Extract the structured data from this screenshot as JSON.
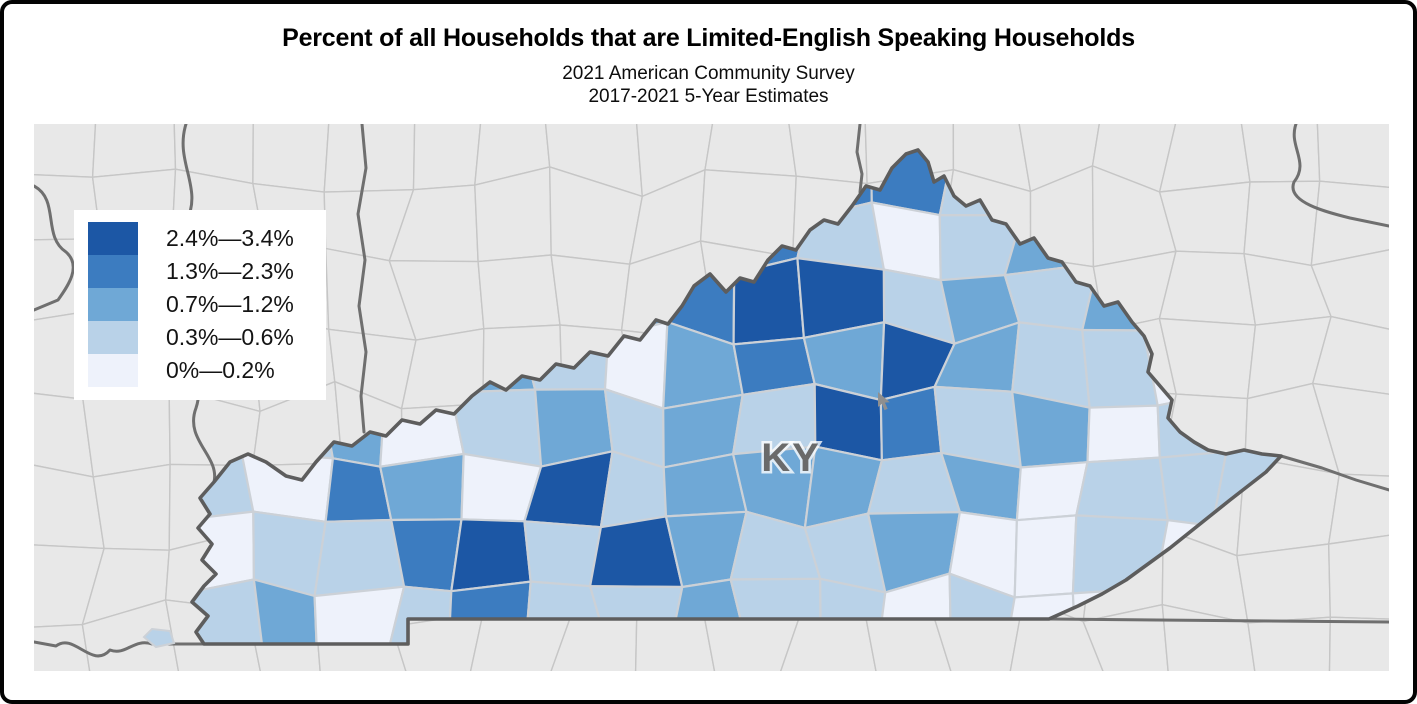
{
  "header": {
    "title": "Percent of all Households that are Limited-English Speaking Households",
    "subtitle_line1": "2021 American Community Survey",
    "subtitle_line2": "2017-2021 5-Year Estimates"
  },
  "map": {
    "state_label": "KY",
    "colors": {
      "surrounding_land": "#e8e8e8",
      "surrounding_county_line": "#c6c6c6",
      "state_border": "#6f6f6f",
      "ky_county_line": "#ccd1d7",
      "ky_state_border": "#5d5d5d",
      "state_label_color": "#6a6a6a"
    }
  },
  "legend": {
    "position": "upper-left",
    "entries": [
      {
        "class": 5,
        "label": "2.4%—3.4%",
        "color": "#1c57a5"
      },
      {
        "class": 4,
        "label": "1.3%—2.3%",
        "color": "#3c7cc0"
      },
      {
        "class": 3,
        "label": "0.7%—1.2%",
        "color": "#6fa8d6"
      },
      {
        "class": 2,
        "label": "0.3%—0.6%",
        "color": "#b9d2e8"
      },
      {
        "class": 1,
        "label": "0%—0.2%",
        "color": "#eef2fb"
      }
    ]
  },
  "chart_data": {
    "type": "choropleth",
    "region": "Kentucky counties (surrounding states shown in gray)",
    "measure": "Percent of all Households that are Limited-English Speaking Households",
    "value_range": [
      "0%",
      "3.4%"
    ],
    "classes": [
      {
        "class": 1,
        "range": "0%—0.2%",
        "color": "#eef2fb"
      },
      {
        "class": 2,
        "range": "0.3%—0.6%",
        "color": "#b9d2e8"
      },
      {
        "class": 3,
        "range": "0.7%—1.2%",
        "color": "#6fa8d6"
      },
      {
        "class": 4,
        "range": "1.3%—2.3%",
        "color": "#3c7cc0"
      },
      {
        "class": 5,
        "range": "2.4%—3.4%",
        "color": "#1c57a5"
      }
    ],
    "cell_classes": [
      [
        1,
        1,
        1,
        1,
        1,
        1,
        1,
        1,
        3,
        4,
        4,
        2,
        1,
        1,
        1,
        1
      ],
      [
        1,
        1,
        1,
        1,
        1,
        1,
        2,
        1,
        4,
        2,
        1,
        2,
        3,
        1,
        1,
        1
      ],
      [
        1,
        1,
        1,
        1,
        2,
        1,
        3,
        4,
        5,
        5,
        2,
        3,
        2,
        3,
        1,
        1
      ],
      [
        1,
        1,
        1,
        2,
        3,
        2,
        1,
        3,
        4,
        3,
        5,
        3,
        2,
        2,
        1,
        1
      ],
      [
        1,
        2,
        3,
        1,
        2,
        3,
        2,
        3,
        2,
        5,
        4,
        2,
        3,
        1,
        2,
        2
      ],
      [
        2,
        1,
        4,
        3,
        1,
        5,
        2,
        3,
        3,
        3,
        2,
        3,
        1,
        2,
        2,
        2
      ],
      [
        1,
        2,
        2,
        4,
        5,
        2,
        5,
        3,
        2,
        2,
        3,
        1,
        1,
        2,
        1,
        1
      ],
      [
        2,
        3,
        1,
        2,
        4,
        2,
        2,
        3,
        2,
        2,
        1,
        2,
        1,
        1,
        1,
        1
      ]
    ]
  }
}
